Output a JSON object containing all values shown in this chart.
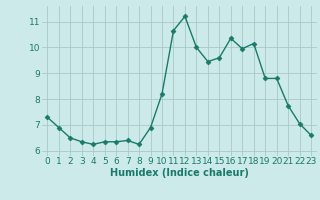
{
  "x": [
    0,
    1,
    2,
    3,
    4,
    5,
    6,
    7,
    8,
    9,
    10,
    11,
    12,
    13,
    14,
    15,
    16,
    17,
    18,
    19,
    20,
    21,
    22,
    23
  ],
  "y": [
    7.3,
    6.9,
    6.5,
    6.35,
    6.25,
    6.35,
    6.35,
    6.4,
    6.25,
    6.9,
    8.2,
    10.65,
    11.2,
    10.0,
    9.45,
    9.6,
    10.35,
    9.95,
    10.15,
    8.8,
    8.8,
    7.75,
    7.05,
    6.6
  ],
  "line_color": "#1a7a6a",
  "marker": "D",
  "marker_size": 2.5,
  "bg_color": "#cceaea",
  "grid_color": "#aac8c8",
  "xlabel": "Humidex (Indice chaleur)",
  "ylim": [
    5.8,
    11.6
  ],
  "xlim": [
    -0.5,
    23.5
  ],
  "yticks": [
    6,
    7,
    8,
    9,
    10,
    11
  ],
  "xticks": [
    0,
    1,
    2,
    3,
    4,
    5,
    6,
    7,
    8,
    9,
    10,
    11,
    12,
    13,
    14,
    15,
    16,
    17,
    18,
    19,
    20,
    21,
    22,
    23
  ],
  "xlabel_fontsize": 7,
  "tick_fontsize": 6.5,
  "tick_color": "#1a7a6a",
  "label_color": "#1a7a6a"
}
